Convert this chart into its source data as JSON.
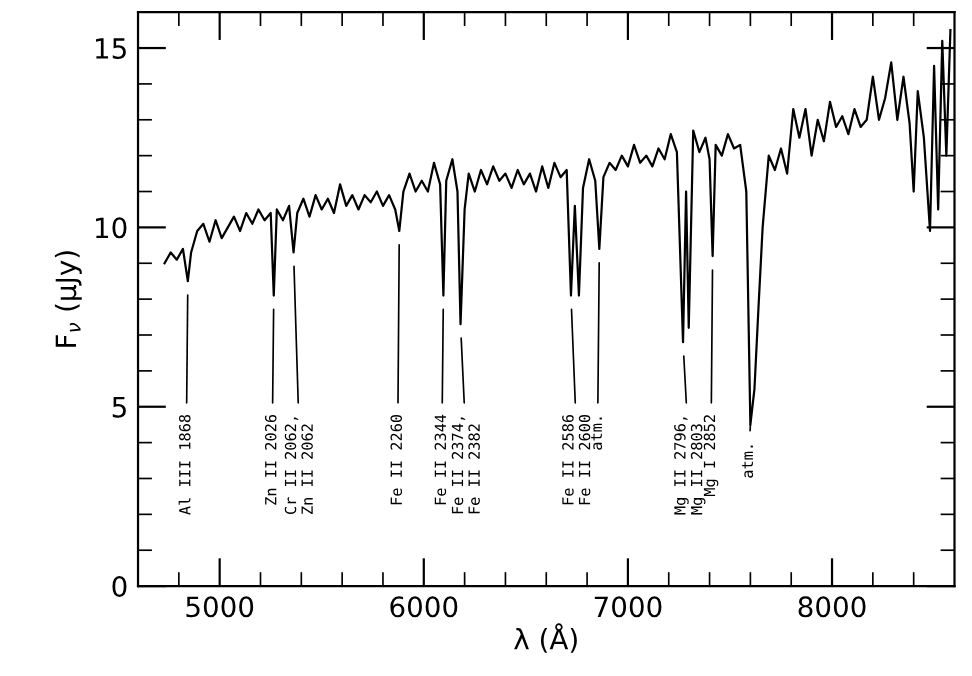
{
  "chart_data": {
    "type": "line",
    "xlabel": "λ (Å)",
    "ylabel": "F$_{ν}$ (μJy)",
    "color": "#000000",
    "x": [
      4730,
      4760,
      4790,
      4820,
      4844,
      4860,
      4890,
      4920,
      4950,
      4980,
      5010,
      5040,
      5070,
      5100,
      5130,
      5160,
      5190,
      5220,
      5250,
      5265,
      5280,
      5310,
      5340,
      5362,
      5380,
      5410,
      5440,
      5470,
      5500,
      5530,
      5560,
      5590,
      5620,
      5650,
      5680,
      5710,
      5740,
      5770,
      5800,
      5830,
      5860,
      5880,
      5900,
      5930,
      5960,
      5990,
      6020,
      6050,
      6080,
      6096,
      6110,
      6140,
      6165,
      6180,
      6200,
      6220,
      6250,
      6280,
      6310,
      6340,
      6370,
      6400,
      6430,
      6460,
      6490,
      6520,
      6550,
      6580,
      6610,
      6640,
      6670,
      6700,
      6721,
      6740,
      6760,
      6780,
      6810,
      6840,
      6860,
      6880,
      6910,
      6940,
      6970,
      7000,
      7030,
      7060,
      7090,
      7120,
      7150,
      7180,
      7210,
      7240,
      7270,
      7285,
      7298,
      7320,
      7350,
      7380,
      7400,
      7415,
      7430,
      7460,
      7490,
      7520,
      7550,
      7580,
      7600,
      7620,
      7640,
      7660,
      7690,
      7720,
      7750,
      7780,
      7810,
      7840,
      7870,
      7900,
      7930,
      7960,
      7990,
      8020,
      8050,
      8080,
      8110,
      8140,
      8170,
      8200,
      8230,
      8260,
      8290,
      8320,
      8350,
      8380,
      8400,
      8420,
      8450,
      8480,
      8500,
      8520,
      8540,
      8560,
      8580
    ],
    "values": [
      9.0,
      9.3,
      9.1,
      9.4,
      8.5,
      9.3,
      9.9,
      10.1,
      9.6,
      10.2,
      9.7,
      10.0,
      10.3,
      9.9,
      10.4,
      10.1,
      10.5,
      10.2,
      10.4,
      8.1,
      10.5,
      10.2,
      10.6,
      9.3,
      10.4,
      10.8,
      10.3,
      10.9,
      10.5,
      10.8,
      10.4,
      11.2,
      10.6,
      10.9,
      10.5,
      10.9,
      10.7,
      11.0,
      10.6,
      10.9,
      10.5,
      9.9,
      11.0,
      11.5,
      11.0,
      11.3,
      11.0,
      11.8,
      11.2,
      8.1,
      11.3,
      11.9,
      11.0,
      7.3,
      10.5,
      11.5,
      11.0,
      11.6,
      11.2,
      11.7,
      11.3,
      11.5,
      11.1,
      11.6,
      11.2,
      11.5,
      11.0,
      11.7,
      11.1,
      11.8,
      11.4,
      11.6,
      8.1,
      10.6,
      8.1,
      11.1,
      11.9,
      11.3,
      9.4,
      11.4,
      11.8,
      11.6,
      12.0,
      11.7,
      12.3,
      11.8,
      12.0,
      11.7,
      12.2,
      11.9,
      12.6,
      12.1,
      6.8,
      11.0,
      7.2,
      12.7,
      12.1,
      12.5,
      11.9,
      9.2,
      12.3,
      12.0,
      12.6,
      12.2,
      12.3,
      11.0,
      4.5,
      5.5,
      7.8,
      10.0,
      12.0,
      11.6,
      12.2,
      11.5,
      13.3,
      12.5,
      13.3,
      12.0,
      13.0,
      12.4,
      13.5,
      12.8,
      13.1,
      12.6,
      13.3,
      12.8,
      13.0,
      14.2,
      13.0,
      13.6,
      14.6,
      13.0,
      14.2,
      12.9,
      11.0,
      13.8,
      12.5,
      9.9,
      14.5,
      10.5,
      15.2,
      12.0,
      15.5
    ],
    "xlim": [
      4600,
      8600
    ],
    "ylim": [
      0,
      16
    ],
    "xticks": [
      {
        "value": 4800,
        "label": null
      },
      5000,
      {
        "value": 5200,
        "label": null
      },
      {
        "value": 5400,
        "label": null
      },
      {
        "value": 5600,
        "label": null
      },
      {
        "value": 5800,
        "label": null
      },
      6000,
      {
        "value": 6200,
        "label": null
      },
      {
        "value": 6400,
        "label": null
      },
      {
        "value": 6600,
        "label": null
      },
      {
        "value": 6800,
        "label": null
      },
      7000,
      {
        "value": 7200,
        "label": null
      },
      {
        "value": 7400,
        "label": null
      },
      {
        "value": 7600,
        "label": null
      },
      {
        "value": 7800,
        "label": null
      },
      8000,
      {
        "value": 8200,
        "label": null
      },
      {
        "value": 8400,
        "label": null
      }
    ],
    "yticks": [
      0,
      {
        "value": 1,
        "label": null
      },
      {
        "value": 2,
        "label": null
      },
      {
        "value": 3,
        "label": null
      },
      {
        "value": 4,
        "label": null
      },
      5,
      {
        "value": 6,
        "label": null
      },
      {
        "value": 7,
        "label": null
      },
      {
        "value": 8,
        "label": null
      },
      {
        "value": 9,
        "label": null
      },
      10,
      {
        "value": 11,
        "label": null
      },
      {
        "value": 12,
        "label": null
      },
      {
        "value": 13,
        "label": null
      },
      {
        "value": 14,
        "label": null
      },
      15,
      {
        "value": 16,
        "label": null
      }
    ],
    "grid": false,
    "legend": false,
    "marker": "none",
    "line_style": "solid",
    "annotations": [
      {
        "text": "Al III 1868",
        "x": 4844,
        "y": 8.5
      },
      {
        "text": "Zn II 2026",
        "x": 5265,
        "y": 8.1
      },
      {
        "text": "Cr II 2062,\nZn II 2062",
        "x": 5362,
        "y": 9.3
      },
      {
        "text": "Fe II 2260",
        "x": 5880,
        "y": 9.9
      },
      {
        "text": "Fe II 2344",
        "x": 6096,
        "y": 8.1
      },
      {
        "text": "Fe II 2374,\nFe II 2382",
        "x": 6180,
        "y": 7.3
      },
      {
        "text": "Fe II 2586\nFe II 2600",
        "x": 6721,
        "y": 8.1
      },
      {
        "text": "atm.",
        "x": 6860,
        "y": 9.4
      },
      {
        "text": "Mg II 2796,\nMg II 2803",
        "x": 7270,
        "y": 6.8
      },
      {
        "text": "Mg I 2852",
        "x": 7415,
        "y": 9.2
      },
      {
        "text": "atm.",
        "x": 7600,
        "y": 4.5
      }
    ]
  }
}
